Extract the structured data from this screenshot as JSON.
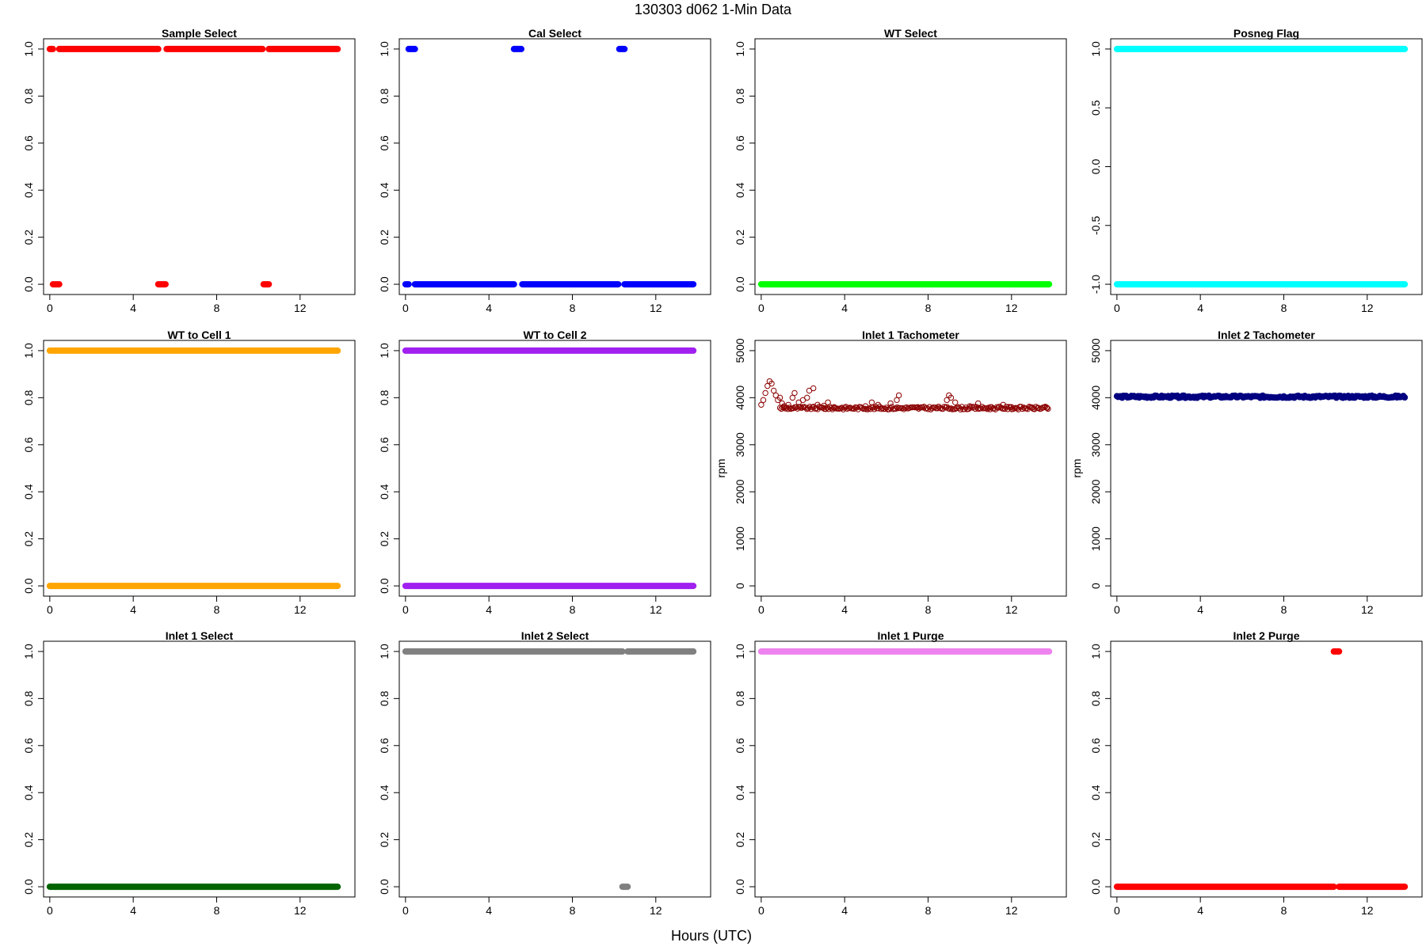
{
  "figure": {
    "title": "130303   d062   1-Min Data",
    "xlabel": "Hours (UTC)"
  },
  "chart_data": [
    {
      "type": "scatter",
      "title": "Sample Select",
      "color": "#ff0000",
      "ylabel": "",
      "xlim": [
        0,
        13.8
      ],
      "ylim": [
        0,
        1
      ],
      "xticks": [
        "0",
        "4",
        "8",
        "12"
      ],
      "yticks": [
        "0.0",
        "0.2",
        "0.4",
        "0.6",
        "0.8",
        "1.0"
      ],
      "segments": [
        {
          "from": 0.0,
          "to": 0.15,
          "y": 1
        },
        {
          "from": 0.15,
          "to": 0.45,
          "y": 0
        },
        {
          "from": 0.45,
          "to": 5.2,
          "y": 1
        },
        {
          "from": 5.2,
          "to": 5.55,
          "y": 0
        },
        {
          "from": 5.6,
          "to": 10.2,
          "y": 1
        },
        {
          "from": 10.25,
          "to": 10.5,
          "y": 0
        },
        {
          "from": 10.5,
          "to": 13.8,
          "y": 1
        }
      ]
    },
    {
      "type": "scatter",
      "title": "Cal Select",
      "color": "#0000ff",
      "ylabel": "",
      "xlim": [
        0,
        13.8
      ],
      "ylim": [
        0,
        1
      ],
      "xticks": [
        "0",
        "4",
        "8",
        "12"
      ],
      "yticks": [
        "0.0",
        "0.2",
        "0.4",
        "0.6",
        "0.8",
        "1.0"
      ],
      "segments": [
        {
          "from": 0.0,
          "to": 0.15,
          "y": 0
        },
        {
          "from": 0.15,
          "to": 0.45,
          "y": 1
        },
        {
          "from": 0.45,
          "to": 5.2,
          "y": 0
        },
        {
          "from": 5.2,
          "to": 5.55,
          "y": 1
        },
        {
          "from": 5.6,
          "to": 10.2,
          "y": 0
        },
        {
          "from": 10.25,
          "to": 10.5,
          "y": 1
        },
        {
          "from": 10.5,
          "to": 13.8,
          "y": 0
        }
      ]
    },
    {
      "type": "scatter",
      "title": "WT Select",
      "color": "#00ff00",
      "ylabel": "",
      "xlim": [
        0,
        13.8
      ],
      "ylim": [
        0,
        1
      ],
      "xticks": [
        "0",
        "4",
        "8",
        "12"
      ],
      "yticks": [
        "0.0",
        "0.2",
        "0.4",
        "0.6",
        "0.8",
        "1.0"
      ],
      "segments": [
        {
          "from": 0.0,
          "to": 13.8,
          "y": 0
        }
      ]
    },
    {
      "type": "scatter",
      "title": "Posneg Flag",
      "color": "#00ffff",
      "ylabel": "",
      "xlim": [
        0,
        13.8
      ],
      "ylim": [
        -1,
        1
      ],
      "xticks": [
        "0",
        "4",
        "8",
        "12"
      ],
      "yticks": [
        "-1.0",
        "-0.5",
        "0.0",
        "0.5",
        "1.0"
      ],
      "segments": [
        {
          "from": 0.0,
          "to": 13.8,
          "y": 1
        },
        {
          "from": 0.0,
          "to": 13.8,
          "y": -1
        }
      ]
    },
    {
      "type": "scatter",
      "title": "WT to Cell 1",
      "color": "#ffa500",
      "ylabel": "",
      "xlim": [
        0,
        13.8
      ],
      "ylim": [
        0,
        1
      ],
      "xticks": [
        "0",
        "4",
        "8",
        "12"
      ],
      "yticks": [
        "0.0",
        "0.2",
        "0.4",
        "0.6",
        "0.8",
        "1.0"
      ],
      "segments": [
        {
          "from": 0.0,
          "to": 13.8,
          "y": 1
        },
        {
          "from": 0.0,
          "to": 13.8,
          "y": 0
        }
      ]
    },
    {
      "type": "scatter",
      "title": "WT to Cell 2",
      "color": "#a020f0",
      "ylabel": "",
      "xlim": [
        0,
        13.8
      ],
      "ylim": [
        0,
        1
      ],
      "xticks": [
        "0",
        "4",
        "8",
        "12"
      ],
      "yticks": [
        "0.0",
        "0.2",
        "0.4",
        "0.6",
        "0.8",
        "1.0"
      ],
      "segments": [
        {
          "from": 0.0,
          "to": 13.8,
          "y": 1
        },
        {
          "from": 0.0,
          "to": 13.8,
          "y": 0
        }
      ]
    },
    {
      "type": "scatter",
      "title": "Inlet 1 Tachometer",
      "color": "#8b0000",
      "ylabel": "rpm",
      "xlim": [
        0,
        13.8
      ],
      "ylim": [
        0,
        5000
      ],
      "xticks": [
        "0",
        "4",
        "8",
        "12"
      ],
      "yticks": [
        "0",
        "1000",
        "2000",
        "3000",
        "4000",
        "5000"
      ],
      "baseline": 3780,
      "open_markers": true,
      "points": [
        [
          0.0,
          3850
        ],
        [
          0.1,
          3950
        ],
        [
          0.2,
          4100
        ],
        [
          0.3,
          4250
        ],
        [
          0.4,
          4350
        ],
        [
          0.5,
          4300
        ],
        [
          0.6,
          4150
        ],
        [
          0.7,
          4050
        ],
        [
          0.8,
          3950
        ],
        [
          0.9,
          4000
        ],
        [
          1.0,
          3880
        ],
        [
          1.1,
          3820
        ],
        [
          1.3,
          3850
        ],
        [
          1.5,
          4000
        ],
        [
          1.6,
          4100
        ],
        [
          1.8,
          3900
        ],
        [
          2.0,
          3950
        ],
        [
          2.2,
          4000
        ],
        [
          2.3,
          4150
        ],
        [
          2.5,
          4200
        ],
        [
          2.7,
          3850
        ],
        [
          3.0,
          3830
        ],
        [
          3.2,
          3900
        ],
        [
          3.5,
          3800
        ],
        [
          4.0,
          3790
        ],
        [
          5.0,
          3820
        ],
        [
          5.3,
          3900
        ],
        [
          5.6,
          3850
        ],
        [
          6.2,
          3880
        ],
        [
          6.5,
          3950
        ],
        [
          6.6,
          4050
        ],
        [
          7.5,
          3800
        ],
        [
          8.5,
          3810
        ],
        [
          8.9,
          3950
        ],
        [
          9.0,
          4050
        ],
        [
          9.1,
          4000
        ],
        [
          9.3,
          3900
        ],
        [
          10.0,
          3820
        ],
        [
          10.4,
          3880
        ],
        [
          11.0,
          3800
        ],
        [
          11.6,
          3850
        ],
        [
          12.0,
          3800
        ],
        [
          13.0,
          3790
        ],
        [
          13.7,
          3780
        ]
      ]
    },
    {
      "type": "scatter",
      "title": "Inlet 2 Tachometer",
      "color": "#000080",
      "ylabel": "rpm",
      "xlim": [
        0,
        13.8
      ],
      "ylim": [
        0,
        5000
      ],
      "xticks": [
        "0",
        "4",
        "8",
        "12"
      ],
      "yticks": [
        "0",
        "1000",
        "2000",
        "3000",
        "4000",
        "5000"
      ],
      "baseline": 4020,
      "band": [
        3980,
        4060
      ]
    },
    {
      "type": "scatter",
      "title": "Inlet 1 Select",
      "color": "#006400",
      "ylabel": "",
      "xlim": [
        0,
        13.8
      ],
      "ylim": [
        0,
        1
      ],
      "xticks": [
        "0",
        "4",
        "8",
        "12"
      ],
      "yticks": [
        "0.0",
        "0.2",
        "0.4",
        "0.6",
        "0.8",
        "1.0"
      ],
      "segments": [
        {
          "from": 0.0,
          "to": 13.8,
          "y": 0
        }
      ]
    },
    {
      "type": "scatter",
      "title": "Inlet 2 Select",
      "color": "#808080",
      "ylabel": "",
      "xlim": [
        0,
        13.8
      ],
      "ylim": [
        0,
        1
      ],
      "xticks": [
        "0",
        "4",
        "8",
        "12"
      ],
      "yticks": [
        "0.0",
        "0.2",
        "0.4",
        "0.6",
        "0.8",
        "1.0"
      ],
      "segments": [
        {
          "from": 0.0,
          "to": 10.4,
          "y": 1
        },
        {
          "from": 10.4,
          "to": 10.65,
          "y": 0
        },
        {
          "from": 10.65,
          "to": 13.8,
          "y": 1
        }
      ]
    },
    {
      "type": "scatter",
      "title": "Inlet 1 Purge",
      "color": "#ee82ee",
      "ylabel": "",
      "xlim": [
        0,
        13.8
      ],
      "ylim": [
        0,
        1
      ],
      "xticks": [
        "0",
        "4",
        "8",
        "12"
      ],
      "yticks": [
        "0.0",
        "0.2",
        "0.4",
        "0.6",
        "0.8",
        "1.0"
      ],
      "segments": [
        {
          "from": 0.0,
          "to": 13.8,
          "y": 1
        }
      ]
    },
    {
      "type": "scatter",
      "title": "Inlet 2 Purge",
      "color": "#ff0000",
      "ylabel": "",
      "xlim": [
        0,
        13.8
      ],
      "ylim": [
        0,
        1
      ],
      "xticks": [
        "0",
        "4",
        "8",
        "12"
      ],
      "yticks": [
        "0.0",
        "0.2",
        "0.4",
        "0.6",
        "0.8",
        "1.0"
      ],
      "segments": [
        {
          "from": 0.0,
          "to": 10.4,
          "y": 0
        },
        {
          "from": 10.4,
          "to": 10.65,
          "y": 1
        },
        {
          "from": 10.65,
          "to": 13.8,
          "y": 0
        }
      ]
    }
  ]
}
